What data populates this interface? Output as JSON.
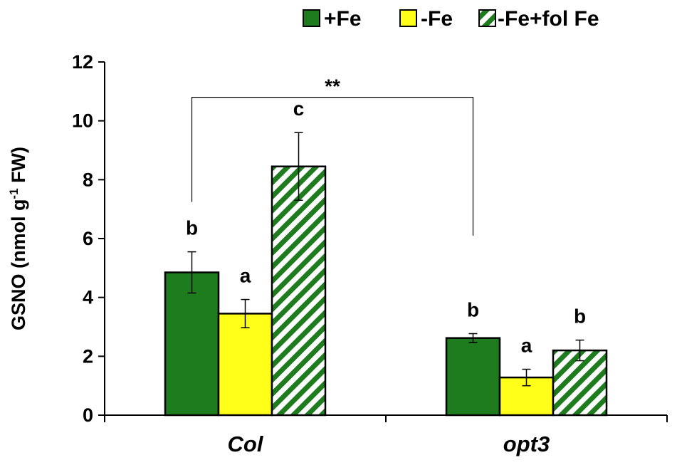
{
  "chart_data": {
    "type": "bar",
    "categories": [
      "Col",
      "opt3"
    ],
    "ylabel_main": "GSNO (nmol g",
    "ylabel_sup": "-1",
    "ylabel_end": " FW)",
    "ylim": [
      0,
      12
    ],
    "yticks": [
      "0",
      "2",
      "4",
      "6",
      "8",
      "10",
      "12"
    ],
    "series": [
      {
        "name": "+Fe",
        "values": [
          4.85,
          2.62
        ],
        "errors": [
          0.7,
          0.15
        ],
        "letters": [
          "b",
          "b"
        ],
        "color": "#1e7b1e",
        "pattern": "solid"
      },
      {
        "name": "-Fe",
        "values": [
          3.45,
          1.28
        ],
        "errors": [
          0.48,
          0.28
        ],
        "letters": [
          "a",
          "a"
        ],
        "color": "#ffff1a",
        "pattern": "solid"
      },
      {
        "name": "-Fe+fol Fe",
        "values": [
          8.45,
          2.2
        ],
        "errors": [
          1.15,
          0.35
        ],
        "letters": [
          "c",
          "b"
        ],
        "color": "#1e7b1e",
        "pattern": "hatch"
      }
    ],
    "significance": {
      "label": "**",
      "level": 10.8
    },
    "legend_position": "top-right"
  }
}
